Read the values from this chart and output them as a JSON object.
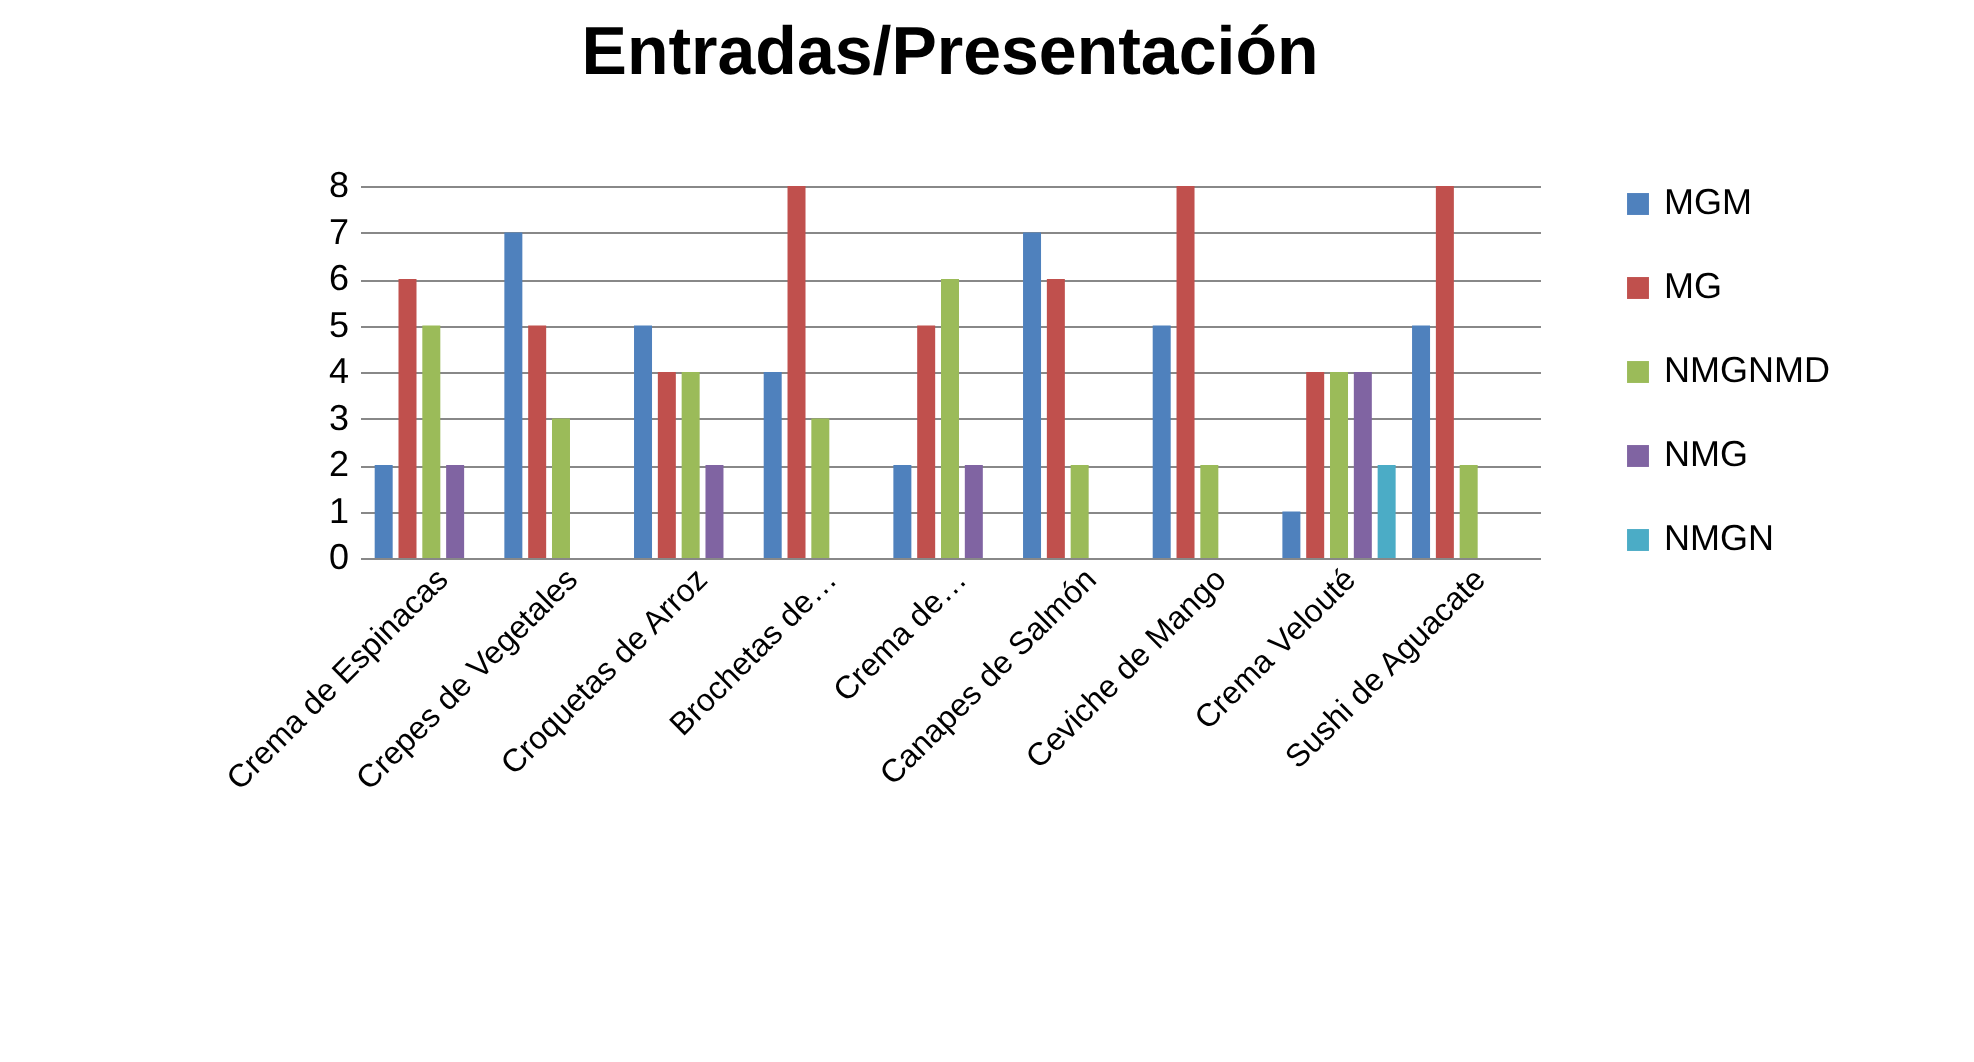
{
  "chart_data": {
    "type": "bar",
    "title": "Entradas/Presentación",
    "categories": [
      "Crema de Espinacas",
      "Crepes de Vegetales",
      "Croquetas de Arroz",
      "Brochetas de…",
      "Crema de…",
      "Canapes de Salmón",
      "Ceviche de Mango",
      "Crema Velouté",
      "Sushi de Aguacate"
    ],
    "series": [
      {
        "name": "MGM",
        "color": "#4f81bd",
        "values": [
          2,
          7,
          5,
          4,
          2,
          7,
          5,
          1,
          5
        ]
      },
      {
        "name": "MG",
        "color": "#c0504d",
        "values": [
          6,
          5,
          4,
          8,
          5,
          6,
          8,
          4,
          8
        ]
      },
      {
        "name": "NMGNMD",
        "color": "#9bbb59",
        "values": [
          5,
          3,
          4,
          3,
          6,
          2,
          2,
          4,
          2
        ]
      },
      {
        "name": "NMG",
        "color": "#8064a2",
        "values": [
          2,
          null,
          2,
          null,
          2,
          null,
          null,
          4,
          null
        ]
      },
      {
        "name": "NMGN",
        "color": "#4bacc6",
        "values": [
          null,
          null,
          null,
          null,
          null,
          null,
          null,
          2,
          null
        ]
      }
    ],
    "ylim": [
      0,
      8
    ],
    "yticks": [
      0,
      1,
      2,
      3,
      4,
      5,
      6,
      7,
      8
    ],
    "grid": "y",
    "legend": "right"
  }
}
